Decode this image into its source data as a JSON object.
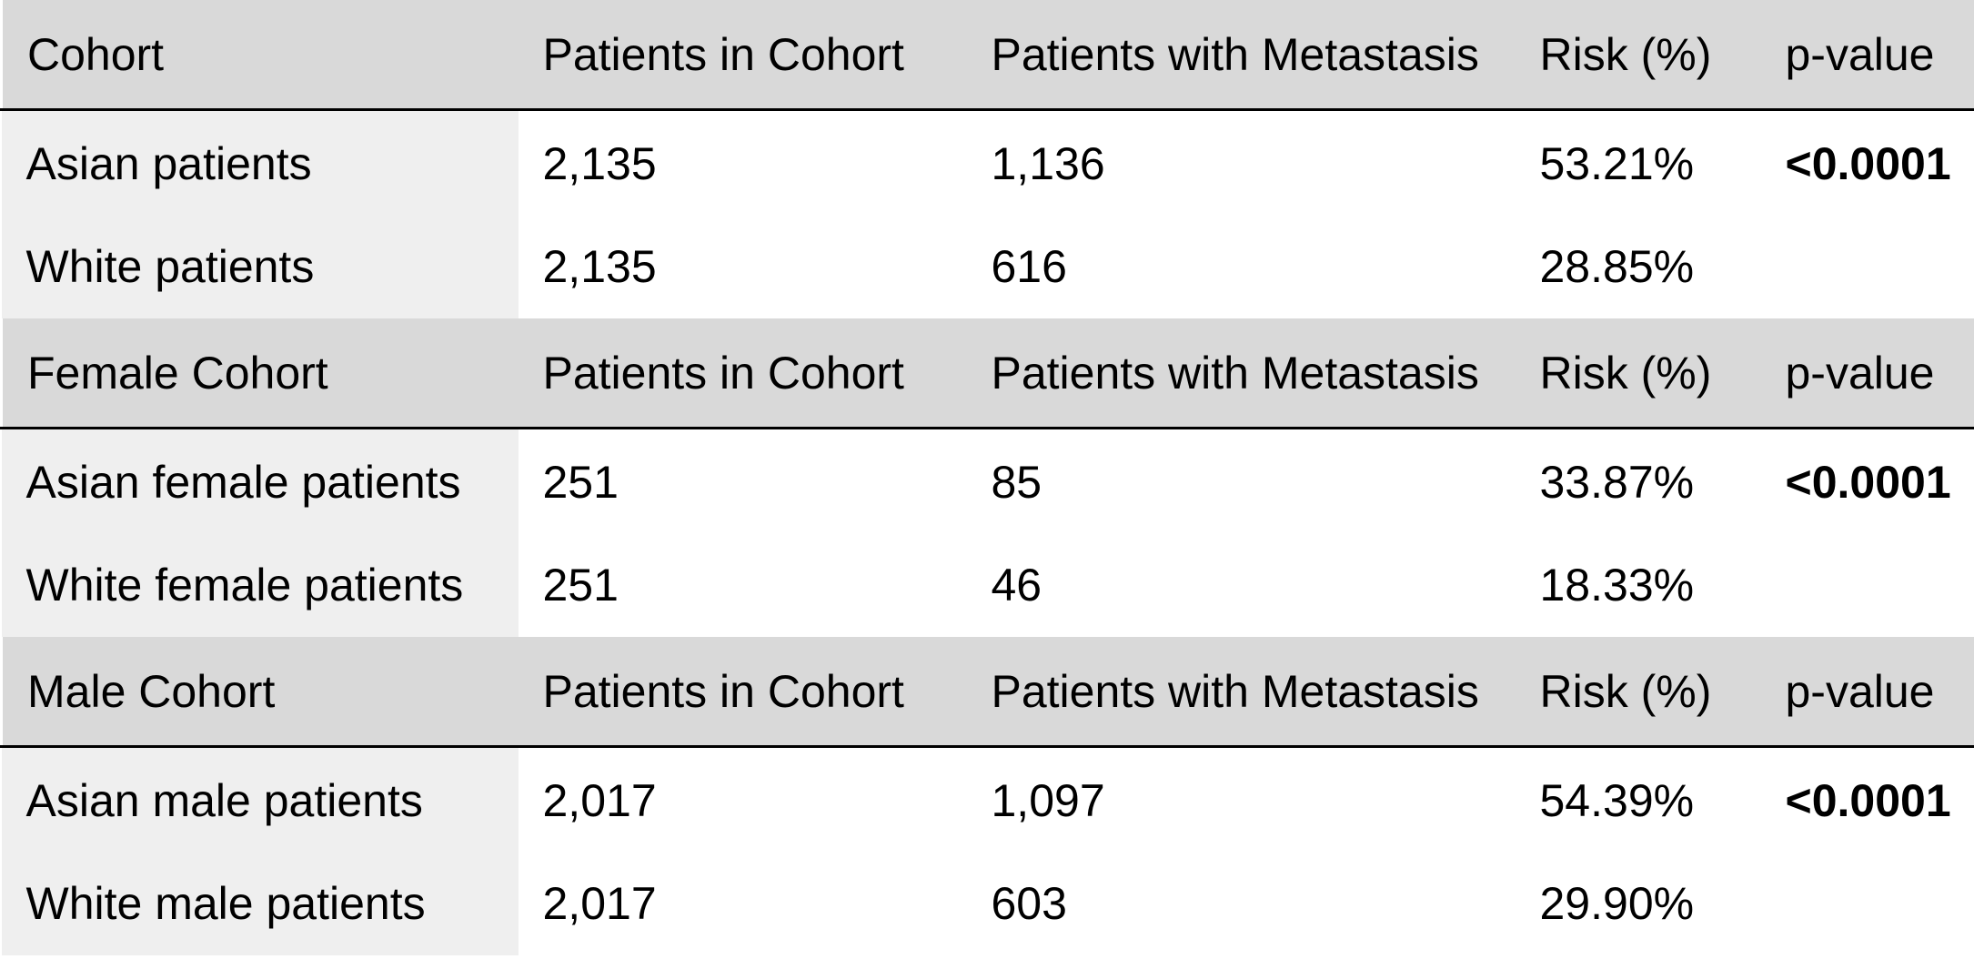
{
  "groups": [
    {
      "header": {
        "cohort": "Cohort",
        "patients_in_cohort": "Patients in Cohort",
        "patients_with_metastasis": "Patients with Metastasis",
        "risk": "Risk (%)",
        "p_value": "p-value"
      },
      "rows": [
        {
          "label": "Asian patients",
          "patients": "2,135",
          "metastasis": "1,136",
          "risk": "53.21%",
          "p_value": "<0.0001"
        },
        {
          "label": "White patients",
          "patients": "2,135",
          "metastasis": "616",
          "risk": "28.85%",
          "p_value": ""
        }
      ]
    },
    {
      "header": {
        "cohort": "Female Cohort",
        "patients_in_cohort": "Patients in Cohort",
        "patients_with_metastasis": "Patients with Metastasis",
        "risk": "Risk (%)",
        "p_value": "p-value"
      },
      "rows": [
        {
          "label": "Asian female patients",
          "patients": "251",
          "metastasis": "85",
          "risk": "33.87%",
          "p_value": "<0.0001"
        },
        {
          "label": "White female patients",
          "patients": "251",
          "metastasis": "46",
          "risk": "18.33%",
          "p_value": ""
        }
      ]
    },
    {
      "header": {
        "cohort": "Male Cohort",
        "patients_in_cohort": "Patients in Cohort",
        "patients_with_metastasis": "Patients with Metastasis",
        "risk": "Risk (%)",
        "p_value": "p-value"
      },
      "rows": [
        {
          "label": "Asian male patients",
          "patients": "2,017",
          "metastasis": "1,097",
          "risk": "54.39%",
          "p_value": "<0.0001"
        },
        {
          "label": "White male patients",
          "patients": "2,017",
          "metastasis": "603",
          "risk": "29.90%",
          "p_value": ""
        }
      ]
    }
  ],
  "colors": {
    "header_background": "#d9d9d9",
    "label_column_background": "#efefef",
    "rule": "#000000"
  }
}
